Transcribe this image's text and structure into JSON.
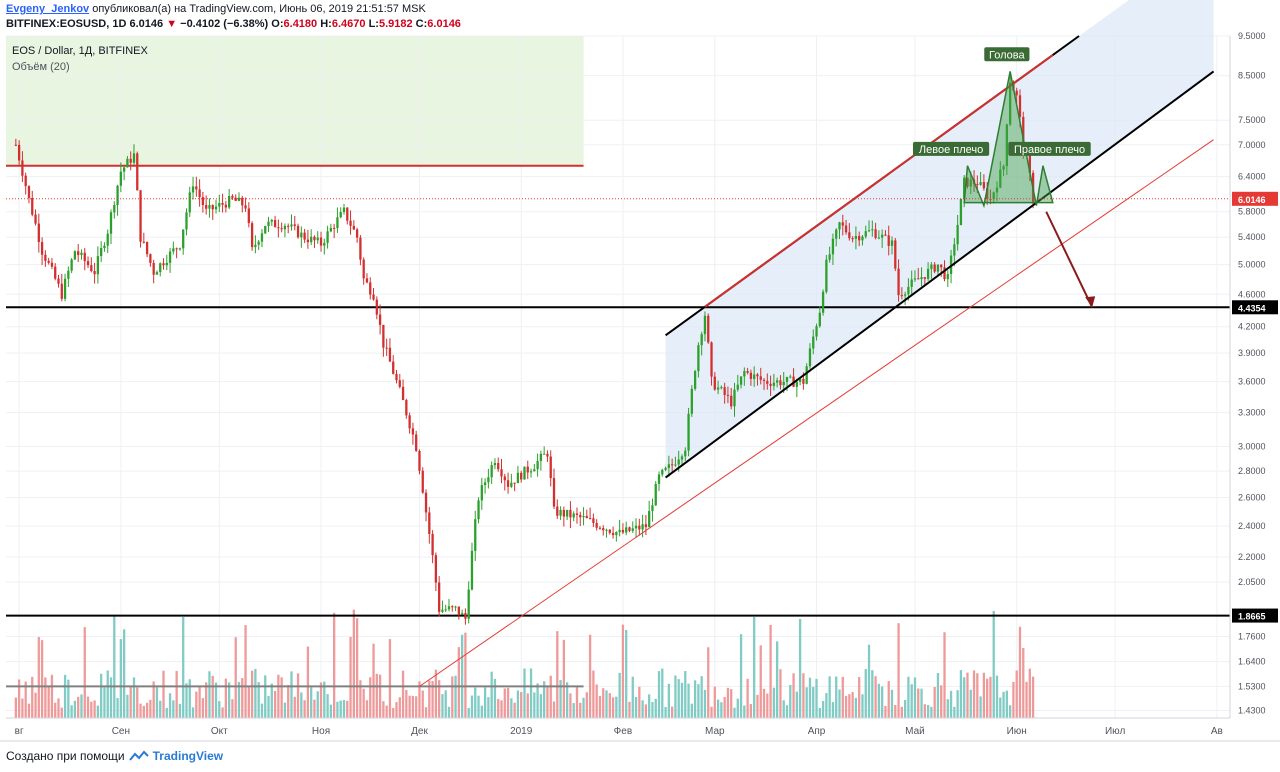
{
  "header": {
    "author": "Evgeny_Jenkov",
    "published_text": "опубликовал(а) на TradingView.com, Июнь 06, 2019 21:51:57 MSK",
    "symbol_line": "BITFINEX:EOSUSD, 1D",
    "last": "6.0146",
    "change": "−0.4102 (−6.38%)",
    "open_label": "O:",
    "open": "6.4180",
    "high_label": "H:",
    "high": "6.4670",
    "low_label": "L:",
    "low": "5.9182",
    "close_label": "C:",
    "close": "6.0146"
  },
  "legend": {
    "title": "EOS / Dollar, 1Д, BITFINEX",
    "volume": "Объём (20)"
  },
  "footer": {
    "text": "Создано при помощи",
    "brand": "TradingView"
  },
  "chart_data": {
    "type": "candlestick",
    "y_scale": "log",
    "ylim": [
      1.4,
      9.5
    ],
    "y_ticks": [
      "9.5000",
      "8.5000",
      "7.5000",
      "7.0000",
      "6.4000",
      "5.8000",
      "5.4000",
      "5.0000",
      "4.6000",
      "4.2000",
      "3.9000",
      "3.6000",
      "3.3000",
      "3.0000",
      "2.8000",
      "2.6000",
      "2.4000",
      "2.2000",
      "2.0500",
      "1.7600",
      "1.6400",
      "1.5300",
      "1.4300"
    ],
    "y_tick_values": [
      9.5,
      8.5,
      7.5,
      7.0,
      6.4,
      5.8,
      5.4,
      5.0,
      4.6,
      4.2,
      3.9,
      3.6,
      3.3,
      3.0,
      2.8,
      2.6,
      2.4,
      2.2,
      2.05,
      1.76,
      1.64,
      1.53,
      1.43
    ],
    "x_labels": [
      "Авг",
      "Сен",
      "Окт",
      "Ноя",
      "Дек",
      "2019",
      "Фев",
      "Мар",
      "Апр",
      "Май",
      "Июн",
      "Июл",
      "Авг"
    ],
    "x_label_dates": [
      "2018-08-01",
      "2018-09-01",
      "2018-10-01",
      "2018-11-01",
      "2018-12-01",
      "2019-01-01",
      "2019-02-01",
      "2019-03-01",
      "2019-04-01",
      "2019-05-01",
      "2019-06-01",
      "2019-07-01",
      "2019-08-01"
    ],
    "x_label_shown": [
      "вг",
      "Сен",
      "Окт",
      "Ноя",
      "Дек",
      "2019",
      "Фев",
      "Мар",
      "Апр",
      "Май",
      "Июн",
      "Июл",
      "Ав"
    ],
    "price_path": [
      [
        "2018-07-31",
        7.0
      ],
      [
        "2018-08-04",
        6.0
      ],
      [
        "2018-08-08",
        5.2
      ],
      [
        "2018-08-14",
        4.6
      ],
      [
        "2018-08-18",
        5.2
      ],
      [
        "2018-08-24",
        4.9
      ],
      [
        "2018-08-28",
        5.5
      ],
      [
        "2018-09-01",
        6.5
      ],
      [
        "2018-09-05",
        6.8
      ],
      [
        "2018-09-07",
        5.4
      ],
      [
        "2018-09-11",
        4.9
      ],
      [
        "2018-09-15",
        5.1
      ],
      [
        "2018-09-19",
        5.3
      ],
      [
        "2018-09-23",
        6.3
      ],
      [
        "2018-09-27",
        5.8
      ],
      [
        "2018-10-01",
        5.9
      ],
      [
        "2018-10-05",
        6.0
      ],
      [
        "2018-10-09",
        5.9
      ],
      [
        "2018-10-11",
        5.2
      ],
      [
        "2018-10-15",
        5.6
      ],
      [
        "2018-10-21",
        5.6
      ],
      [
        "2018-10-27",
        5.4
      ],
      [
        "2018-11-01",
        5.3
      ],
      [
        "2018-11-05",
        5.6
      ],
      [
        "2018-11-08",
        5.8
      ],
      [
        "2018-11-12",
        5.4
      ],
      [
        "2018-11-14",
        4.8
      ],
      [
        "2018-11-17",
        4.6
      ],
      [
        "2018-11-20",
        4.0
      ],
      [
        "2018-11-25",
        3.5
      ],
      [
        "2018-11-30",
        3.0
      ],
      [
        "2018-12-03",
        2.5
      ],
      [
        "2018-12-07",
        1.9
      ],
      [
        "2018-12-12",
        1.9
      ],
      [
        "2018-12-15",
        1.85
      ],
      [
        "2018-12-19",
        2.6
      ],
      [
        "2018-12-24",
        2.9
      ],
      [
        "2018-12-28",
        2.7
      ],
      [
        "2019-01-05",
        2.85
      ],
      [
        "2019-01-09",
        2.95
      ],
      [
        "2019-01-11",
        2.5
      ],
      [
        "2019-01-20",
        2.45
      ],
      [
        "2019-01-31",
        2.35
      ],
      [
        "2019-02-08",
        2.4
      ],
      [
        "2019-02-12",
        2.75
      ],
      [
        "2019-02-16",
        2.85
      ],
      [
        "2019-02-20",
        3.0
      ],
      [
        "2019-02-24",
        4.0
      ],
      [
        "2019-02-26",
        4.35
      ],
      [
        "2019-02-28",
        3.6
      ],
      [
        "2019-03-06",
        3.4
      ],
      [
        "2019-03-10",
        3.7
      ],
      [
        "2019-03-16",
        3.6
      ],
      [
        "2019-03-22",
        3.6
      ],
      [
        "2019-03-28",
        3.6
      ],
      [
        "2019-04-02",
        4.4
      ],
      [
        "2019-04-04",
        5.0
      ],
      [
        "2019-04-08",
        5.6
      ],
      [
        "2019-04-12",
        5.4
      ],
      [
        "2019-04-18",
        5.5
      ],
      [
        "2019-04-24",
        5.3
      ],
      [
        "2019-04-26",
        4.6
      ],
      [
        "2019-05-02",
        4.8
      ],
      [
        "2019-05-08",
        5.0
      ],
      [
        "2019-05-11",
        4.8
      ],
      [
        "2019-05-14",
        5.6
      ],
      [
        "2019-05-16",
        6.3
      ],
      [
        "2019-05-20",
        6.3
      ],
      [
        "2019-05-24",
        6.0
      ],
      [
        "2019-05-28",
        6.6
      ],
      [
        "2019-05-30",
        8.4
      ],
      [
        "2019-06-01",
        8.0
      ],
      [
        "2019-06-03",
        7.0
      ],
      [
        "2019-06-05",
        6.4
      ],
      [
        "2019-06-06",
        6.0146
      ]
    ],
    "volume_series": "Объём (20)",
    "horizontal_levels": [
      {
        "value": 6.6,
        "color": "#d32f2f",
        "extent": "Aug–Jan"
      },
      {
        "value": 4.4354,
        "color": "#000000",
        "label": "4.4354"
      },
      {
        "value": 1.8665,
        "color": "#000000",
        "label": "1.8665"
      },
      {
        "value": 1.53,
        "color": "#808080",
        "extent": "Aug–Jan"
      }
    ],
    "last_price_label": "6.0146",
    "channel": {
      "upper": [
        [
          "2019-02-14",
          4.1
        ],
        [
          "2019-06-20",
          9.5
        ]
      ],
      "lower": [
        [
          "2019-02-14",
          2.75
        ],
        [
          "2019-07-31",
          8.6
        ]
      ],
      "support_red": [
        [
          "2018-12-01",
          1.53
        ],
        [
          "2019-07-31",
          7.1
        ]
      ]
    },
    "pattern_labels": [
      "Левое плечо",
      "Голова",
      "Правое плечо"
    ],
    "projection_arrow": {
      "from": [
        "2019-06-10",
        5.8
      ],
      "to": [
        "2019-06-24",
        4.4354
      ]
    },
    "zones": [
      {
        "name": "bull-zone",
        "color": "#e8f5e0",
        "range": [
          "2018-07-31",
          "2019-01-20"
        ],
        "y": [
          6.6,
          9.5
        ]
      },
      {
        "name": "bear-zone",
        "color": "#fbe0e0",
        "range": [
          "2018-07-31",
          "2019-01-20"
        ],
        "y": [
          1.4,
          6.6
        ]
      },
      {
        "name": "channel-fill",
        "color": "#dde8f7"
      }
    ],
    "colors": {
      "up": "#26a69a",
      "down": "#e53935",
      "up_body": "#2ca02c",
      "down_body": "#d32f2f",
      "vol_up": "#80cbc4",
      "vol_down": "#ef9a9a"
    }
  }
}
